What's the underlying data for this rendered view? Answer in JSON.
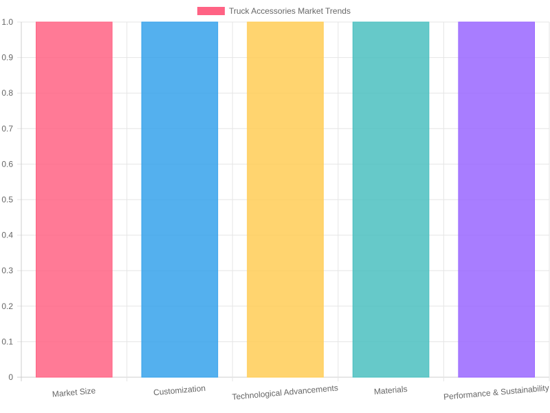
{
  "chart_data": {
    "type": "bar",
    "legend": {
      "position": "top",
      "entries": [
        {
          "label": "Truck Accessories Market Trends",
          "color": "#ff6384"
        }
      ]
    },
    "categories": [
      "Market Size",
      "Customization",
      "Technological Advancements",
      "Materials",
      "Performance & Sustainability"
    ],
    "series": [
      {
        "name": "Truck Accessories Market Trends",
        "values": [
          1,
          1,
          1,
          1,
          1
        ],
        "colors": [
          "#ff6384",
          "#36a2eb",
          "#ffcd56",
          "#4bc0c0",
          "#9966ff"
        ]
      }
    ],
    "ylim": [
      0,
      1
    ],
    "yticks": [
      "0",
      "0.1",
      "0.2",
      "0.3",
      "0.4",
      "0.5",
      "0.6",
      "0.7",
      "0.8",
      "0.9",
      "1.0"
    ],
    "grid": true
  }
}
